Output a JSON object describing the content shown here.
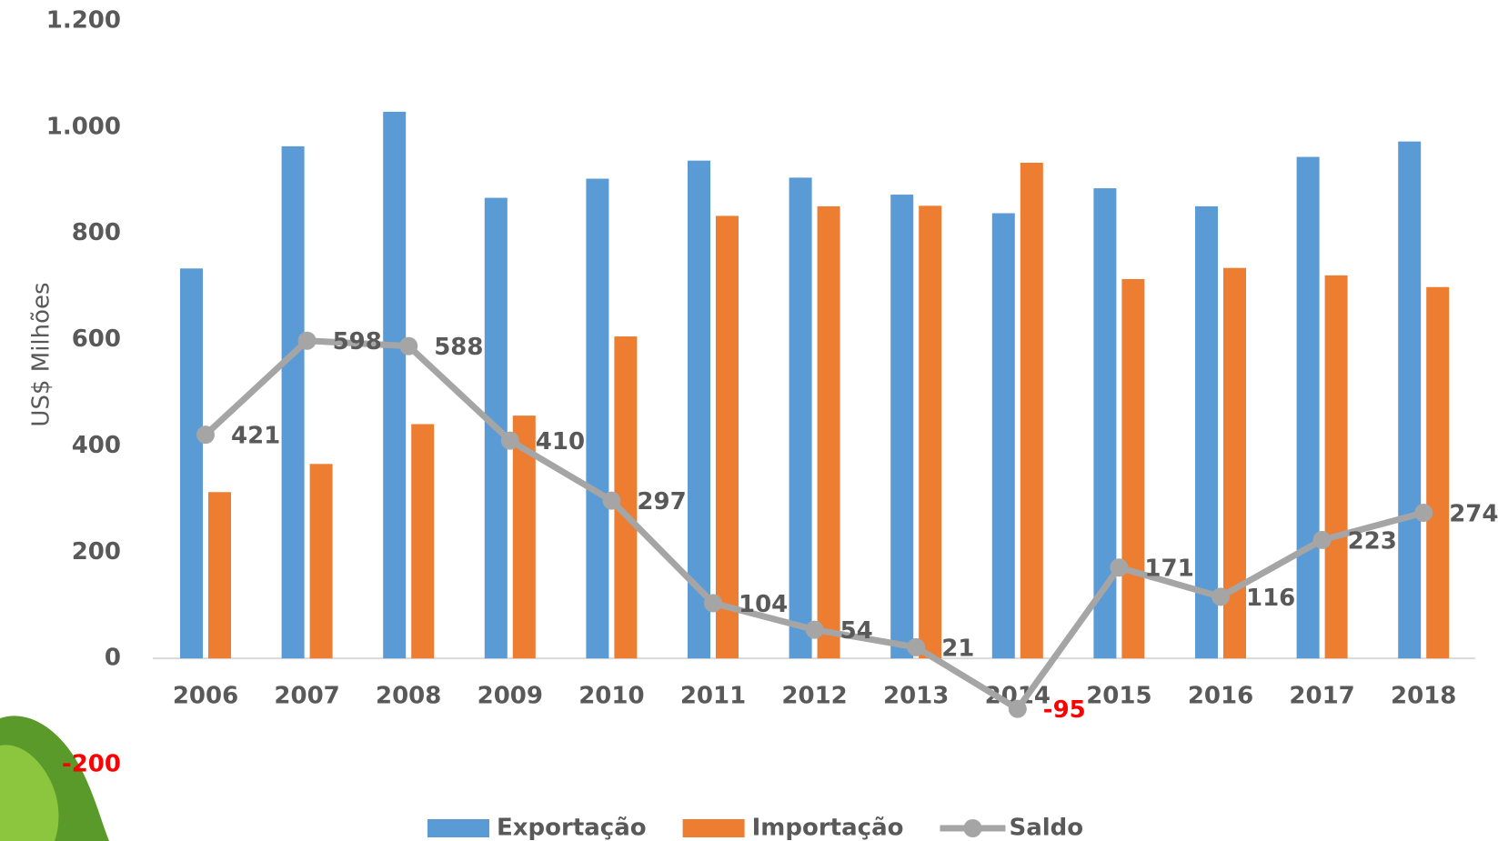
{
  "chart_data": {
    "type": "bar",
    "y_label": "US$ Milhões",
    "categories": [
      "2006",
      "2007",
      "2008",
      "2009",
      "2010",
      "2011",
      "2012",
      "2013",
      "2014",
      "2015",
      "2016",
      "2017",
      "2018"
    ],
    "series": [
      {
        "name": "Exportação",
        "type": "bar",
        "color": "#5b9bd5",
        "values": [
          734,
          964,
          1029,
          867,
          903,
          937,
          905,
          873,
          838,
          885,
          851,
          944,
          973
        ]
      },
      {
        "name": "Importação",
        "type": "bar",
        "color": "#ed7d31",
        "values": [
          313,
          366,
          441,
          457,
          606,
          833,
          851,
          852,
          933,
          714,
          735,
          721,
          699
        ]
      },
      {
        "name": "Saldo",
        "type": "line",
        "color": "#a5a5a5",
        "values": [
          421,
          598,
          588,
          410,
          297,
          104,
          54,
          21,
          -95,
          171,
          116,
          223,
          274
        ]
      }
    ],
    "ylim": [
      -200,
      1200
    ],
    "yticks": [
      {
        "value": -200,
        "label": "-200"
      },
      0,
      200,
      400,
      600,
      800,
      {
        "value": 1000,
        "label": "1.000"
      },
      {
        "value": 1200,
        "label": "1.200"
      }
    ],
    "negative_color": "#ff0000",
    "legend": "bottom"
  }
}
